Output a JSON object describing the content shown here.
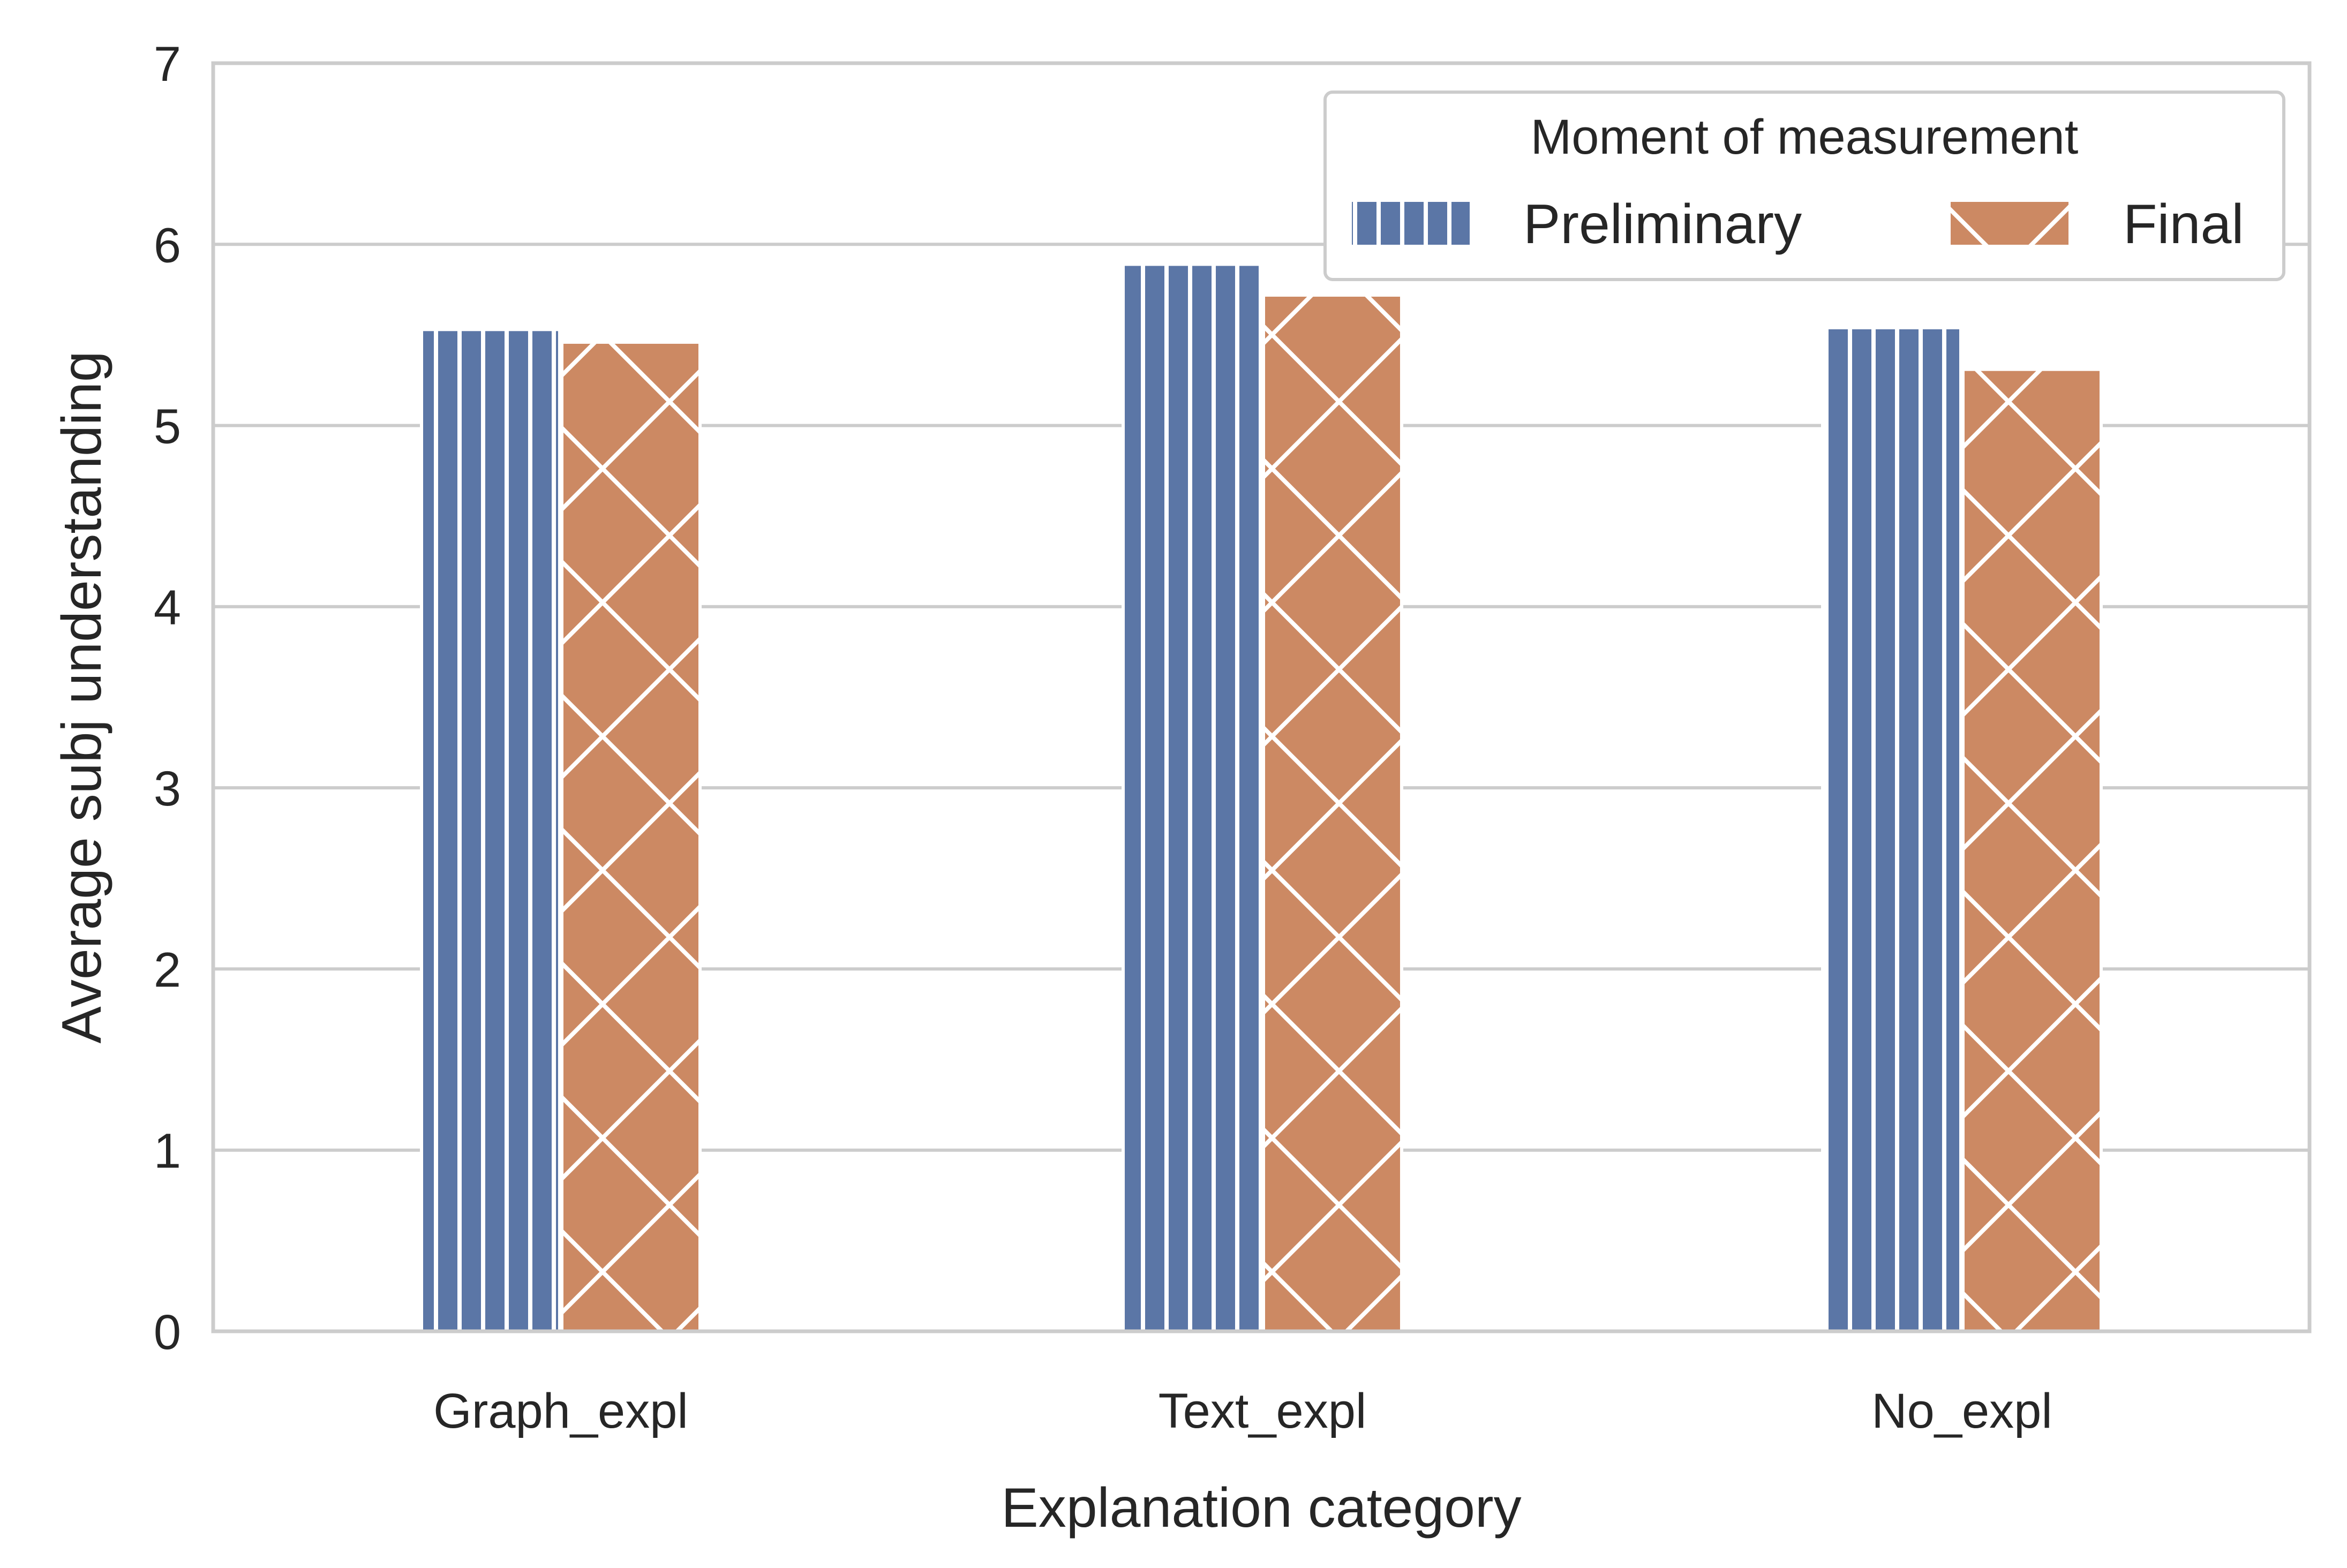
{
  "chart_data": {
    "type": "bar",
    "title": "",
    "xlabel": "Explanation category",
    "ylabel": "Average subj understanding",
    "categories": [
      "Graph_expl",
      "Text_expl",
      "No_expl"
    ],
    "series": [
      {
        "name": "Preliminary",
        "values": [
          5.53,
          5.89,
          5.54
        ],
        "color": "#5b76a6",
        "hatch": "vertical-lines"
      },
      {
        "name": "Final",
        "values": [
          5.46,
          5.72,
          5.31
        ],
        "color": "#cc8963",
        "hatch": "crosshatch"
      }
    ],
    "ylim": [
      0,
      7
    ],
    "yticks": [
      "0",
      "1",
      "2",
      "3",
      "4",
      "5",
      "6",
      "7"
    ],
    "grid": "horizontal",
    "legend": {
      "title": "Moment of measurement",
      "placement": "top-right"
    },
    "colors": {
      "grid": "#cccccc",
      "spine": "#cccccc",
      "text": "#262626",
      "hatch_line": "#ffffff"
    }
  }
}
